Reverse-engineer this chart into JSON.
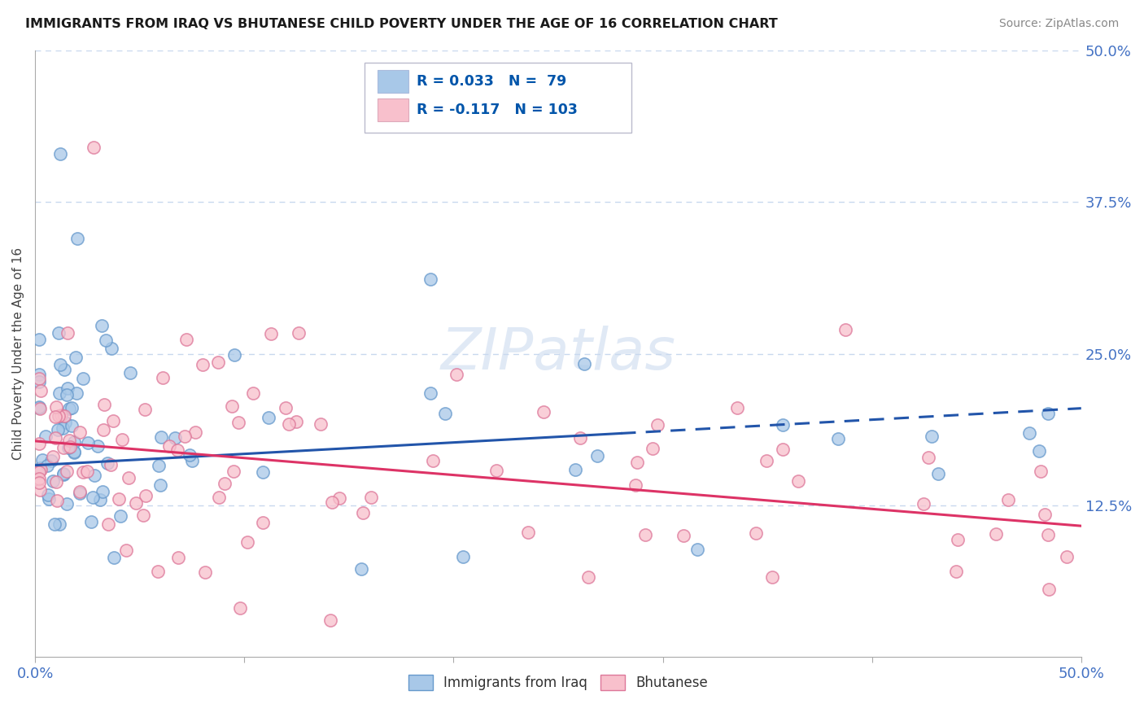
{
  "title": "IMMIGRANTS FROM IRAQ VS BHUTANESE CHILD POVERTY UNDER THE AGE OF 16 CORRELATION CHART",
  "source": "Source: ZipAtlas.com",
  "ylabel": "Child Poverty Under the Age of 16",
  "xlim": [
    0.0,
    0.5
  ],
  "ylim": [
    0.0,
    0.5
  ],
  "ytick_labels_right": [
    "12.5%",
    "25.0%",
    "37.5%",
    "50.0%"
  ],
  "ytick_vals_right": [
    0.125,
    0.25,
    0.375,
    0.5
  ],
  "series1_name": "Immigrants from Iraq",
  "series1_color": "#a8c8e8",
  "series1_edge": "#6699cc",
  "series1_line_color": "#2255aa",
  "series1_R": "0.033",
  "series1_N": "79",
  "series2_name": "Bhutanese",
  "series2_color": "#f8c0cc",
  "series2_edge": "#dd7799",
  "series2_line_color": "#dd3366",
  "series2_R": "-0.117",
  "series2_N": "103",
  "legend_text_color": "#0055aa",
  "background_color": "#ffffff",
  "title_color": "#1a1a1a",
  "grid_color": "#c8d8ee",
  "watermark": "ZIPatlas",
  "trend1_x0": 0.0,
  "trend1_y0": 0.158,
  "trend1_x1": 0.5,
  "trend1_y1": 0.205,
  "trend1_solid_end": 0.28,
  "trend2_x0": 0.0,
  "trend2_y0": 0.178,
  "trend2_x1": 0.5,
  "trend2_y1": 0.108
}
